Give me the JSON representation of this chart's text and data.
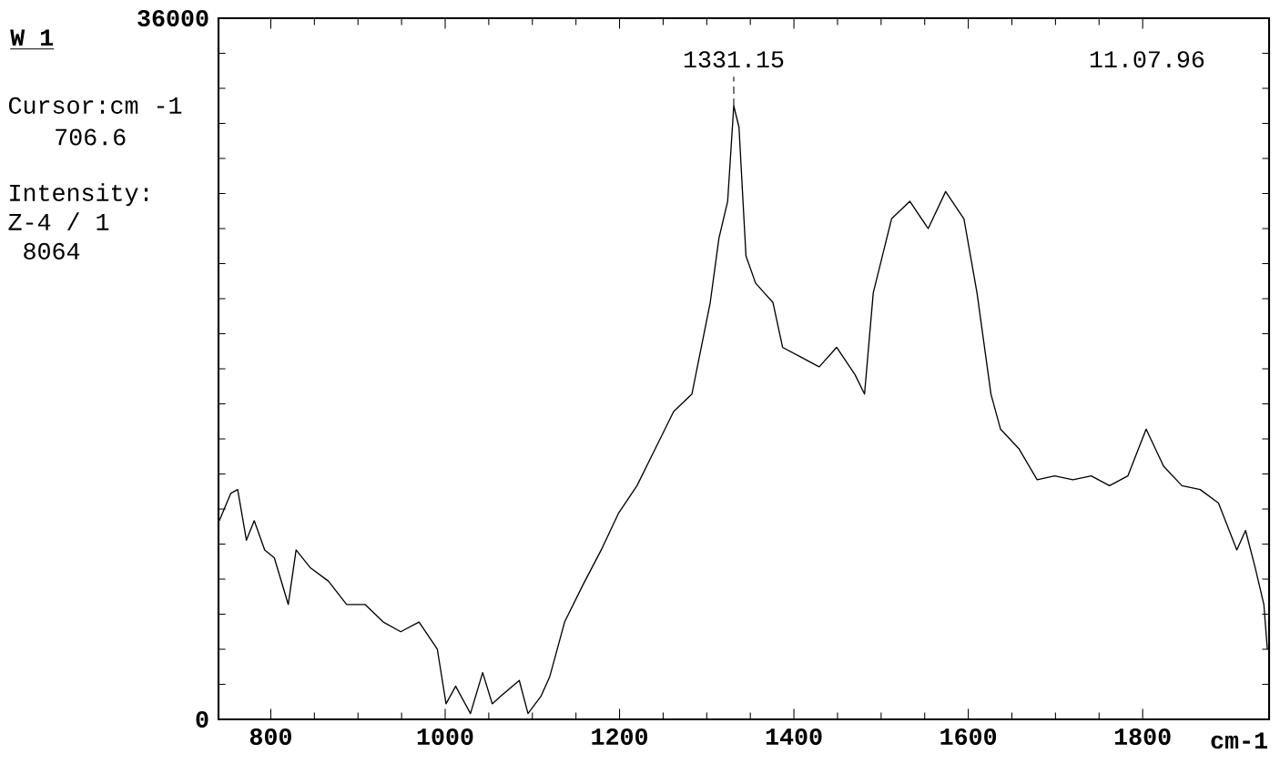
{
  "chart_data": {
    "type": "line",
    "title": "W 1",
    "xlabel": "cm-1",
    "annotations": [
      {
        "text": "1331.15",
        "x": 1331,
        "y": 31500
      },
      "11.07.96",
      "Cursor:cm -1",
      "706.6",
      "Intensity:",
      "Z-4 / 1",
      "8064"
    ],
    "x": [
      741,
      754,
      762,
      772,
      781,
      793,
      804,
      820,
      829,
      845,
      866,
      887,
      908,
      929,
      949,
      970,
      991,
      1001,
      1012,
      1029,
      1043,
      1054,
      1064,
      1085,
      1095,
      1110,
      1120,
      1137,
      1158,
      1179,
      1199,
      1220,
      1241,
      1262,
      1283,
      1304,
      1314,
      1324,
      1331,
      1337,
      1345,
      1356,
      1366,
      1376,
      1387,
      1408,
      1429,
      1449,
      1470,
      1481,
      1491,
      1512,
      1533,
      1554,
      1574,
      1595,
      1610,
      1626,
      1637,
      1658,
      1679,
      1699,
      1720,
      1741,
      1762,
      1783,
      1804,
      1824,
      1845,
      1866,
      1887,
      1908,
      1918,
      1929,
      1939,
      1943
    ],
    "values": [
      10200,
      11600,
      11800,
      9200,
      10200,
      8700,
      8300,
      5900,
      8700,
      7800,
      7100,
      5900,
      5900,
      5000,
      4500,
      5000,
      3600,
      800,
      1700,
      300,
      2400,
      800,
      1200,
      2000,
      300,
      1200,
      2200,
      5000,
      6900,
      8700,
      10600,
      12000,
      13900,
      15800,
      16700,
      21400,
      24700,
      26600,
      31500,
      30400,
      23800,
      22400,
      21900,
      21400,
      19100,
      18600,
      18100,
      19100,
      17700,
      16700,
      21900,
      25700,
      26600,
      25200,
      27100,
      25700,
      21900,
      16700,
      14900,
      13900,
      12300,
      12500,
      12300,
      12500,
      12000,
      12500,
      14900,
      13000,
      12000,
      11800,
      11100,
      8700,
      9700,
      7800,
      5900,
      3600
    ],
    "color": "#000000",
    "xlim": [
      740,
      1945
    ],
    "ylim": [
      0,
      36000
    ],
    "yticks": [
      0,
      36000
    ],
    "xticks": [
      800,
      1000,
      1200,
      1400,
      1600,
      1800
    ],
    "marker": "none",
    "line_style": "solid"
  }
}
